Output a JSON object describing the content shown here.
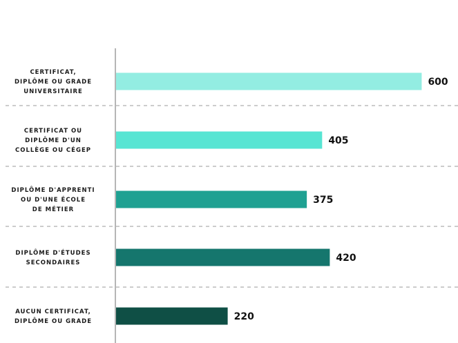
{
  "chart_data": {
    "type": "bar",
    "orientation": "horizontal",
    "categories": [
      [
        "CERTIFICAT,",
        "DIPLÔME OU GRADE",
        "UNIVERSITAIRE"
      ],
      [
        "CERTIFICAT OU",
        "DIPLÔME D'UN",
        "COLLÈGE OU CÉGEP"
      ],
      [
        "DIPLÔME D'APPRENTI",
        "OU D'UNE ÉCOLE",
        "DE MÉTIER"
      ],
      [
        "DIPLÔME D'ÉTUDES",
        "SECONDAIRES"
      ],
      [
        "AUCUN CERTIFICAT,",
        "DIPLÔME OU GRADE"
      ]
    ],
    "values": [
      600,
      405,
      375,
      420,
      220
    ],
    "value_labels": [
      "600",
      "405",
      "375",
      "420",
      "220"
    ],
    "colors": [
      "#93ede2",
      "#57e5d3",
      "#1fa192",
      "#15766d",
      "#0f4f45"
    ],
    "xlim": [
      0,
      640
    ],
    "grid": false,
    "legend": "none"
  }
}
